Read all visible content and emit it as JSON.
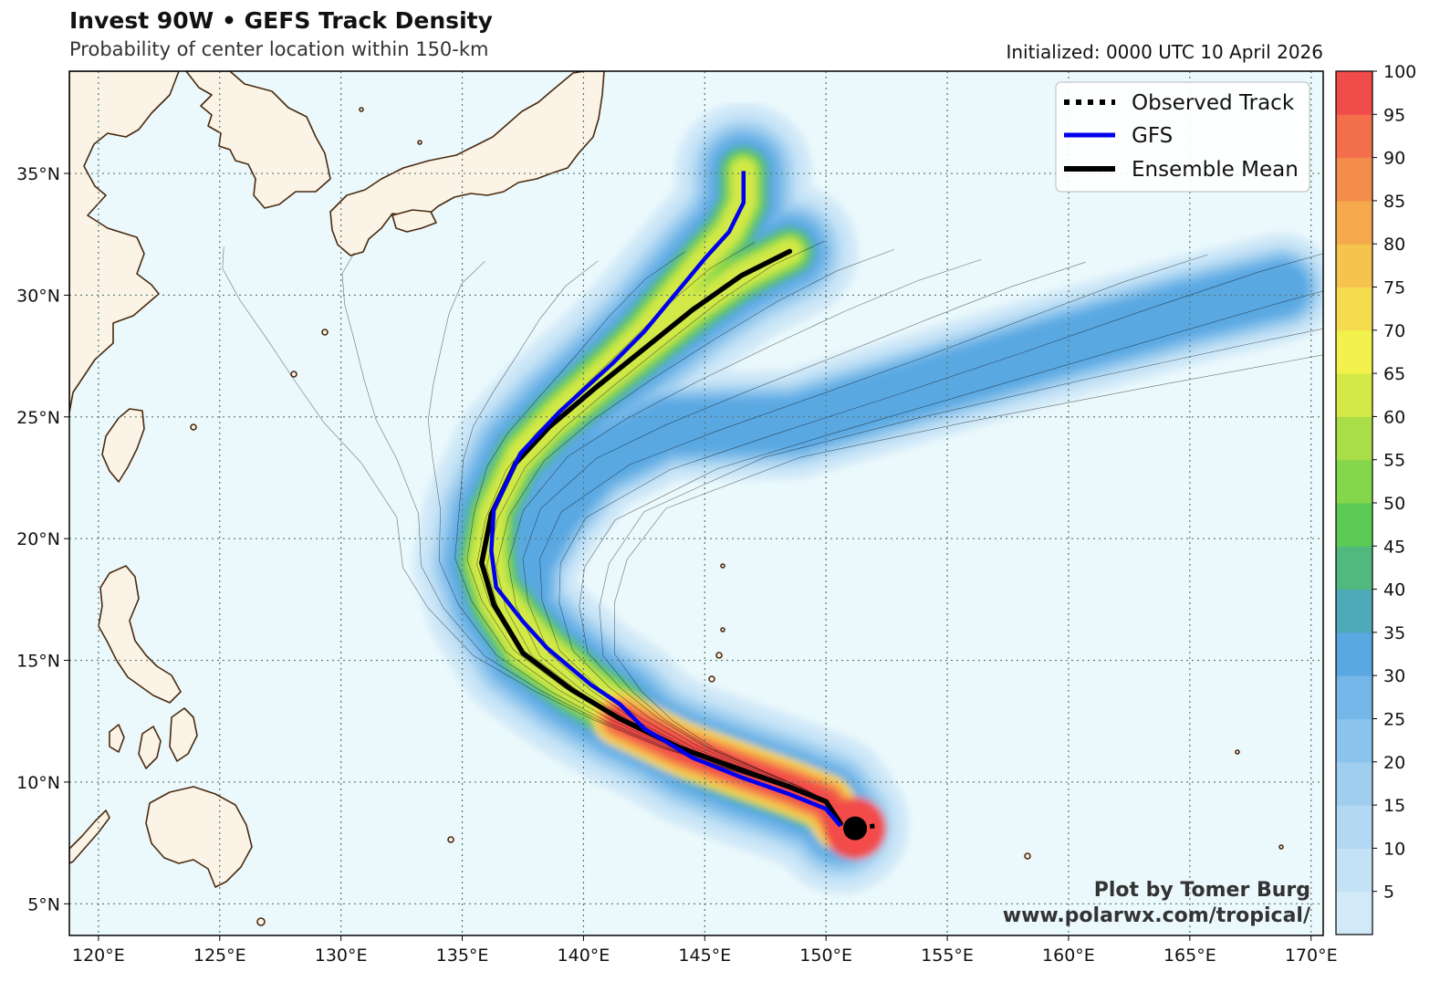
{
  "header": {
    "title": "Invest 90W • GEFS Track Density",
    "subtitle": "Probability of center location within 150-km",
    "initialized": "Initialized: 0000 UTC 10 April 2026"
  },
  "credit": {
    "line1": "Plot by Tomer Burg",
    "line2": "www.polarwx.com/tropical/"
  },
  "legend": {
    "items": [
      {
        "label": "Observed Track",
        "style": "dotted",
        "color": "#000000"
      },
      {
        "label": "GFS",
        "style": "solid",
        "color": "#0000ee"
      },
      {
        "label": "Ensemble Mean",
        "style": "solid",
        "color": "#000000"
      }
    ]
  },
  "map": {
    "lon_range": [
      118.8,
      170.5
    ],
    "lat_range": [
      3.7,
      39.2
    ],
    "lon_ticks": [
      120,
      125,
      130,
      135,
      140,
      145,
      150,
      155,
      160,
      165,
      170
    ],
    "lon_tick_labels": [
      "120°E",
      "125°E",
      "130°E",
      "135°E",
      "140°E",
      "145°E",
      "150°E",
      "155°E",
      "160°E",
      "165°E",
      "170°E"
    ],
    "lat_ticks": [
      5,
      10,
      15,
      20,
      25,
      30,
      35
    ],
    "lat_tick_labels": [
      "5°N",
      "10°N",
      "15°N",
      "20°N",
      "25°N",
      "30°N",
      "35°N"
    ],
    "ocean_color": "#ebf9fc",
    "land_color": "#fbf4e6",
    "coast_color": "#4a2a10",
    "grid": "dotted"
  },
  "colorbar": {
    "min": 0,
    "max": 100,
    "step": 5,
    "tick_labels": [
      "5",
      "10",
      "15",
      "20",
      "25",
      "30",
      "35",
      "40",
      "45",
      "50",
      "55",
      "60",
      "65",
      "70",
      "75",
      "80",
      "85",
      "90",
      "95",
      "100"
    ],
    "colors": [
      "#d2e9f8",
      "#c3e2f6",
      "#b2d8f3",
      "#9fceef",
      "#8ac3ec",
      "#74b7e8",
      "#5aa8e2",
      "#4ea9b8",
      "#52b97e",
      "#5ccb55",
      "#84d64a",
      "#aade48",
      "#d2e947",
      "#f3f24c",
      "#f5dc4e",
      "#f6c34d",
      "#f5a94c",
      "#f48c4b",
      "#f36e4a",
      "#f24c4a"
    ]
  },
  "tracks": {
    "observed": {
      "label": "Observed Track",
      "points": [
        [
          152.0,
          8.2
        ],
        [
          151.5,
          8.15
        ]
      ]
    },
    "storm_center": [
      151.2,
      8.1
    ],
    "gfs": {
      "label": "GFS",
      "points": [
        [
          150.6,
          8.2
        ],
        [
          150.0,
          8.9
        ],
        [
          148.5,
          9.5
        ],
        [
          146.5,
          10.2
        ],
        [
          144.5,
          11.0
        ],
        [
          142.5,
          12.2
        ],
        [
          141.5,
          13.2
        ],
        [
          140.3,
          14.0
        ],
        [
          138.5,
          15.5
        ],
        [
          137.5,
          16.6
        ],
        [
          136.4,
          18.0
        ],
        [
          136.2,
          19.5
        ],
        [
          136.3,
          21.2
        ],
        [
          137.4,
          23.5
        ],
        [
          139.0,
          25.2
        ],
        [
          141.2,
          27.2
        ],
        [
          142.5,
          28.5
        ],
        [
          144.0,
          30.3
        ],
        [
          145.0,
          31.5
        ],
        [
          146.0,
          32.6
        ],
        [
          146.6,
          33.8
        ],
        [
          146.6,
          34.5
        ],
        [
          146.6,
          35.1
        ]
      ]
    },
    "ensemble_mean": {
      "label": "Ensemble Mean",
      "points": [
        [
          150.6,
          8.3
        ],
        [
          150.0,
          9.2
        ],
        [
          148.5,
          9.8
        ],
        [
          146.5,
          10.5
        ],
        [
          144.0,
          11.4
        ],
        [
          141.5,
          12.6
        ],
        [
          139.5,
          13.8
        ],
        [
          137.5,
          15.3
        ],
        [
          136.3,
          17.3
        ],
        [
          135.8,
          19.0
        ],
        [
          136.2,
          21.0
        ],
        [
          137.2,
          23.1
        ],
        [
          138.6,
          24.6
        ],
        [
          140.5,
          26.2
        ],
        [
          142.5,
          27.8
        ],
        [
          144.5,
          29.4
        ],
        [
          146.5,
          30.8
        ],
        [
          148.5,
          31.8
        ]
      ]
    }
  }
}
